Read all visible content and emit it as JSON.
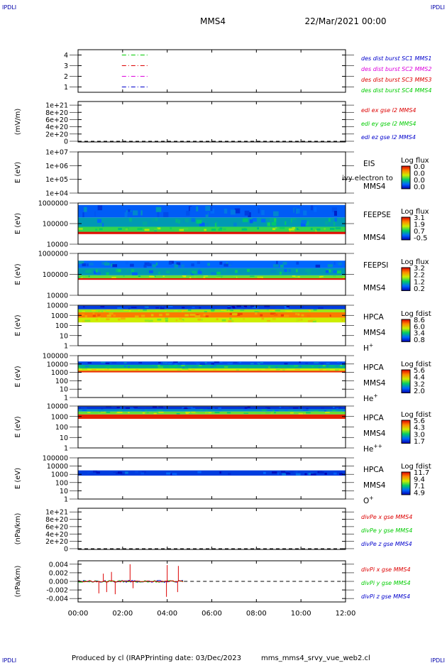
{
  "header": {
    "corner_left": "IPDLI",
    "corner_right": "IPDLI",
    "title": "MMS4",
    "datetime": "22/Mar/2021 00:00"
  },
  "footer": {
    "produced_by": "Produced by cl (IRAP)",
    "printing_date": "Printing date: 03/Dec/2023",
    "script": "mms_mms4_srvy_vue_web2.cl",
    "corner_left": "IPDLI",
    "corner_right": "IPDLI"
  },
  "colors": {
    "black": "#000000",
    "red": "#dd0000",
    "green": "#00cc00",
    "blue": "#0000cc",
    "magenta": "#dd00dd",
    "dark_red": "#b00000"
  },
  "chart_data": [
    {
      "type": "line",
      "ylabel": "",
      "ylim": [
        0.5,
        4.5
      ],
      "yticks": [
        "1",
        "2",
        "3",
        "4"
      ],
      "legend": [
        {
          "text": "des dist burst SC1 MMS1",
          "color": "#0000cc"
        },
        {
          "text": "des dist burst SC2 MMS2",
          "color": "#dd00dd"
        },
        {
          "text": "des dist burst SC3 MMS3",
          "color": "#dd0000"
        },
        {
          "text": "des dist burst SC4 MMS4",
          "color": "#00cc00"
        }
      ],
      "series": [
        {
          "y": 4,
          "x": [
            "01:58",
            "03:12"
          ],
          "color": "#00cc00"
        },
        {
          "y": 3,
          "x": [
            "01:58",
            "03:12"
          ],
          "color": "#dd0000"
        },
        {
          "y": 2,
          "x": [
            "01:58",
            "03:12"
          ],
          "color": "#dd00dd"
        },
        {
          "y": 1,
          "x": [
            "01:58",
            "03:12"
          ],
          "color": "#0000cc"
        }
      ]
    },
    {
      "type": "line",
      "ylabel": "(mV/m)",
      "ylim": [
        -2e+19,
        1.1e+21
      ],
      "yticks": [
        "0",
        "2e+20",
        "4e+20",
        "6e+20",
        "8e+20",
        "1e+21"
      ],
      "dashed_zero": true,
      "legend": [
        {
          "text": "edi ex gse l2 MMS4",
          "color": "#dd0000"
        },
        {
          "text": "edi ey gse l2 MMS4",
          "color": "#00cc00"
        },
        {
          "text": "edi ez gse l2 MMS4",
          "color": "#0000cc"
        }
      ]
    },
    {
      "type": "heatmap",
      "ylabel": "E (eV)",
      "scale": "log",
      "ylim": [
        10000,
        10000000
      ],
      "yticks": [
        "1e+04",
        "1e+05",
        "1e+06",
        "1e+07"
      ],
      "instrument": [
        "EIS",
        "MMS4"
      ],
      "overlay_text": "ivy electron to",
      "colorbar": {
        "title": "Log flux",
        "ticks": [
          "0.0",
          "0.0",
          "0.0",
          "0.0"
        ]
      }
    },
    {
      "type": "heatmap",
      "ylabel": "E (eV)",
      "scale": "log",
      "ylim": [
        10000,
        1000000
      ],
      "yticks": [
        "10000",
        "100000",
        "1000000"
      ],
      "instrument": [
        "FEEPSE",
        "MMS4"
      ],
      "colorbar": {
        "title": "Log flux",
        "ticks": [
          "3.1",
          "1.9",
          "0.7",
          "-0.5"
        ]
      },
      "bands": [
        {
          "from": 31000,
          "to": 40000,
          "level": 0.98
        },
        {
          "from": 40000,
          "to": 70000,
          "level": 0.45
        },
        {
          "from": 70000,
          "to": 200000,
          "level": 0.3
        },
        {
          "from": 200000,
          "to": 800000,
          "level": 0.18
        }
      ]
    },
    {
      "type": "heatmap",
      "ylabel": "E (eV)",
      "scale": "log",
      "ylim": [
        10000,
        1000000
      ],
      "yticks": [
        "10000",
        "100000",
        "1000000"
      ],
      "instrument": [
        "FEEPSI",
        "MMS4"
      ],
      "colorbar": {
        "title": "Log flux",
        "ticks": [
          "3.2",
          "2.2",
          "1.2",
          "0.2"
        ]
      },
      "bands": [
        {
          "from": 55000,
          "to": 65000,
          "level": 0.98
        },
        {
          "from": 65000,
          "to": 90000,
          "level": 0.5
        },
        {
          "from": 90000,
          "to": 200000,
          "level": 0.3
        },
        {
          "from": 200000,
          "to": 450000,
          "level": 0.2
        }
      ]
    },
    {
      "type": "heatmap",
      "ylabel": "E (eV)",
      "scale": "log",
      "ylim": [
        1,
        10000
      ],
      "yticks": [
        "1",
        "10",
        "100",
        "1000",
        "10000"
      ],
      "instrument": [
        "HPCA",
        "MMS4",
        "H+"
      ],
      "colorbar": {
        "title": "Log fdist",
        "ticks": [
          "8.6",
          "6.0",
          "3.4",
          "0.8"
        ]
      },
      "bands": [
        {
          "from": 200,
          "to": 600,
          "level": 0.6
        },
        {
          "from": 600,
          "to": 2000,
          "level": 0.82
        },
        {
          "from": 2000,
          "to": 4000,
          "level": 0.55
        },
        {
          "from": 4000,
          "to": 9000,
          "level": 0.12
        }
      ]
    },
    {
      "type": "heatmap",
      "ylabel": "E (eV)",
      "scale": "log",
      "ylim": [
        1,
        100000
      ],
      "yticks": [
        "1",
        "10",
        "100",
        "1000",
        "10000",
        "100000"
      ],
      "instrument": [
        "HPCA",
        "MMS4",
        "He+"
      ],
      "colorbar": {
        "title": "Log fdist",
        "ticks": [
          "5.6",
          "4.4",
          "3.2",
          "2.0"
        ]
      },
      "bands": [
        {
          "from": 1000,
          "to": 1600,
          "level": 0.92
        },
        {
          "from": 1600,
          "to": 3000,
          "level": 0.6
        },
        {
          "from": 3000,
          "to": 8000,
          "level": 0.35
        },
        {
          "from": 8000,
          "to": 20000,
          "level": 0.15
        }
      ]
    },
    {
      "type": "heatmap",
      "ylabel": "E (eV)",
      "scale": "log",
      "ylim": [
        1,
        10000
      ],
      "yticks": [
        "1",
        "10",
        "100",
        "1000",
        "10000"
      ],
      "instrument": [
        "HPCA",
        "MMS4",
        "He++"
      ],
      "colorbar": {
        "title": "Log fdist",
        "ticks": [
          "5.6",
          "4.3",
          "3.0",
          "1.7"
        ]
      },
      "bands": [
        {
          "from": 600,
          "to": 1600,
          "level": 0.95
        },
        {
          "from": 1600,
          "to": 3000,
          "level": 0.5
        },
        {
          "from": 3000,
          "to": 5000,
          "level": 0.28
        },
        {
          "from": 5000,
          "to": 9000,
          "level": 0.1
        }
      ]
    },
    {
      "type": "heatmap",
      "ylabel": "E (eV)",
      "scale": "log",
      "ylim": [
        1,
        100000
      ],
      "yticks": [
        "1",
        "10",
        "100",
        "1000",
        "10000",
        "100000"
      ],
      "instrument": [
        "HPCA",
        "MMS4",
        "O+"
      ],
      "colorbar": {
        "title": "Log fdist",
        "ticks": [
          "11.7",
          "9.4",
          "7.1",
          "4.9"
        ]
      },
      "bands": [
        {
          "from": 700,
          "to": 3000,
          "level": 0.12
        }
      ]
    },
    {
      "type": "line",
      "ylabel": "(nPa/km)",
      "ylim": [
        -2e+19,
        1.1e+21
      ],
      "yticks": [
        "0",
        "2e+20",
        "4e+20",
        "6e+20",
        "8e+20",
        "1e+21"
      ],
      "dashed_zero": true,
      "legend": [
        {
          "text": "divPe x gse MMS4",
          "color": "#dd0000"
        },
        {
          "text": "divPe y gse MMS4",
          "color": "#00cc00"
        },
        {
          "text": "divPe z gse MMS4",
          "color": "#0000cc"
        }
      ]
    },
    {
      "type": "line",
      "ylabel": "(nPa/km)",
      "ylim": [
        -0.0048,
        0.0048
      ],
      "yticks": [
        "-0.004",
        "-0.002",
        "0.000",
        "0.002",
        "0.004"
      ],
      "dashed_zero": true,
      "data_end": "04:45",
      "legend": [
        {
          "text": "divPi x gse MMS4",
          "color": "#dd0000"
        },
        {
          "text": "divPi y gse MMS4",
          "color": "#00cc00"
        },
        {
          "text": "divPi z gse MMS4",
          "color": "#0000cc"
        }
      ],
      "spikes": [
        {
          "t": "00:56",
          "v": -0.0028
        },
        {
          "t": "01:08",
          "v": 0.0018
        },
        {
          "t": "01:17",
          "v": -0.0025
        },
        {
          "t": "01:30",
          "v": 0.0022
        },
        {
          "t": "01:40",
          "v": -0.003
        },
        {
          "t": "02:20",
          "v": 0.004
        },
        {
          "t": "02:28",
          "v": -0.0016
        },
        {
          "t": "03:58",
          "v": -0.0036
        },
        {
          "t": "04:00",
          "v": 0.0038
        },
        {
          "t": "04:28",
          "v": -0.0025
        },
        {
          "t": "04:30",
          "v": 0.0036
        }
      ]
    }
  ],
  "xaxis": {
    "ticks": [
      "00:00",
      "02:00",
      "04:00",
      "06:00",
      "08:00",
      "10:00",
      "12:00"
    ]
  }
}
